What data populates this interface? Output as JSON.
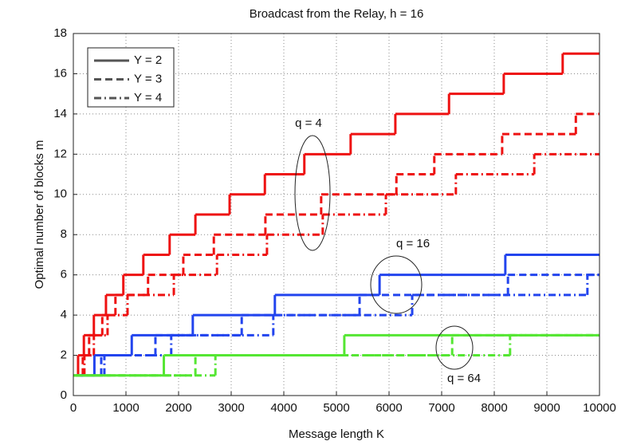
{
  "chart_data": {
    "type": "step",
    "title": "Broadcast from the Relay, h = 16",
    "xlabel": "Message length K",
    "ylabel": "Optimal number of blocks m",
    "xlim": [
      0,
      10000
    ],
    "ylim": [
      0,
      18
    ],
    "xticks": [
      0,
      1000,
      2000,
      3000,
      4000,
      5000,
      6000,
      7000,
      8000,
      9000,
      10000
    ],
    "yticks": [
      0,
      2,
      4,
      6,
      8,
      10,
      12,
      14,
      16,
      18
    ],
    "grid": true,
    "legend_position": "upper left",
    "legend": [
      {
        "label": "Y = 2",
        "style": "solid"
      },
      {
        "label": "Y = 3",
        "style": "dashed"
      },
      {
        "label": "Y = 4",
        "style": "dashdot"
      }
    ],
    "legend_color": "#555555",
    "series": [
      {
        "color": "#ee1111",
        "style": "solid",
        "x": [
          50,
          90,
          200,
          390,
          620,
          950,
          1330,
          1830,
          2320,
          2970,
          3640,
          4390,
          5270,
          6120,
          7140,
          8180,
          9300
        ],
        "values": [
          1,
          2,
          3,
          4,
          5,
          6,
          7,
          8,
          9,
          10,
          11,
          12,
          13,
          14,
          15,
          16,
          17
        ]
      },
      {
        "color": "#ee1111",
        "style": "dashed",
        "x": [
          50,
          180,
          300,
          550,
          800,
          1420,
          2090,
          2670,
          3650,
          4710,
          6140,
          6860,
          8150,
          9550
        ],
        "values": [
          1,
          2,
          3,
          4,
          5,
          6,
          7,
          8,
          9,
          10,
          11,
          12,
          13,
          14
        ]
      },
      {
        "color": "#ee1111",
        "style": "dashdot",
        "x": [
          50,
          210,
          390,
          650,
          1030,
          1910,
          2730,
          3680,
          4740,
          5940,
          7270,
          8760
        ],
        "values": [
          1,
          2,
          3,
          4,
          5,
          6,
          7,
          8,
          9,
          10,
          11,
          12
        ]
      },
      {
        "color": "#2244ee",
        "style": "solid",
        "x": [
          50,
          400,
          1110,
          2270,
          3830,
          5820,
          8210
        ],
        "values": [
          1,
          2,
          3,
          4,
          5,
          6,
          7
        ]
      },
      {
        "color": "#2244ee",
        "style": "dashed",
        "x": [
          50,
          530,
          1560,
          3200,
          5440,
          8260
        ],
        "values": [
          1,
          2,
          3,
          4,
          5,
          6
        ]
      },
      {
        "color": "#2244ee",
        "style": "dashdot",
        "x": [
          50,
          590,
          1860,
          3800,
          6440,
          9770
        ],
        "values": [
          1,
          2,
          3,
          4,
          5,
          6
        ]
      },
      {
        "color": "#55e633",
        "style": "solid",
        "x": [
          0,
          1720,
          5150
        ],
        "values": [
          1,
          2,
          3
        ]
      },
      {
        "color": "#55e633",
        "style": "dashed",
        "x": [
          0,
          2320,
          7200
        ],
        "values": [
          1,
          2,
          3
        ]
      },
      {
        "color": "#55e633",
        "style": "dashdot",
        "x": [
          0,
          2700,
          8300
        ],
        "values": [
          1,
          2,
          3
        ]
      }
    ],
    "annotations": [
      "q = 4",
      "q = 16",
      "q = 64"
    ]
  }
}
